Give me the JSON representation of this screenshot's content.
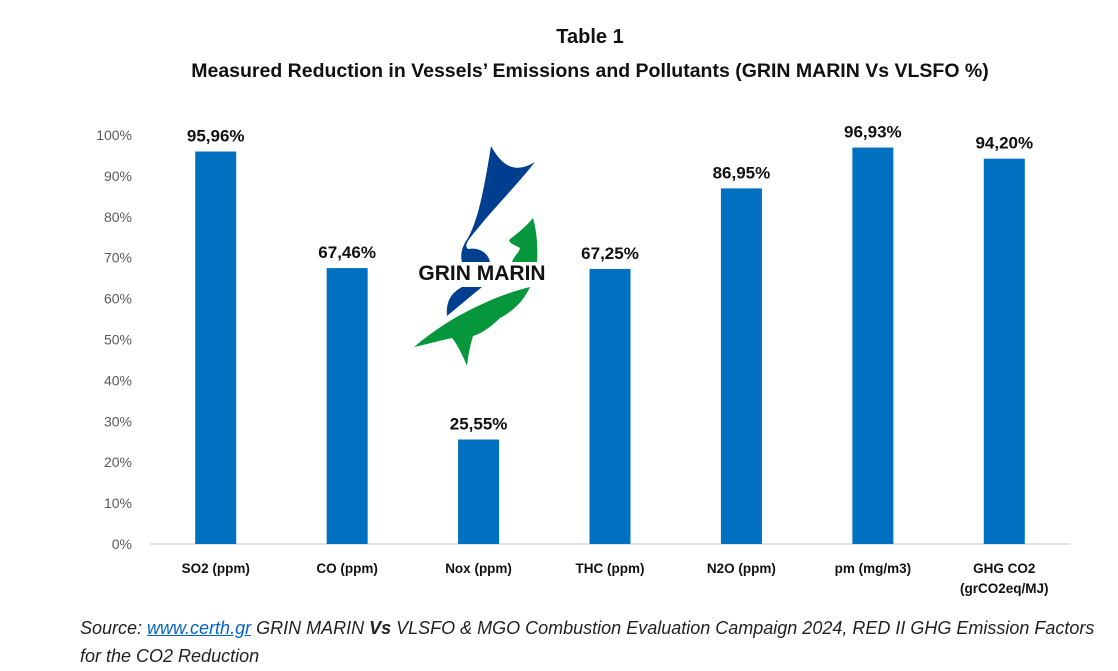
{
  "chart_data": {
    "type": "bar",
    "title": "Table 1",
    "subtitle": "Measured Reduction in Vessels’ Emissions and Pollutants (GRIN MARIN Vs VLSFO %)",
    "xlabel": "",
    "ylabel": "",
    "ylim": [
      0,
      100
    ],
    "yticks": [
      "0%",
      "10%",
      "20%",
      "30%",
      "40%",
      "50%",
      "60%",
      "70%",
      "80%",
      "90%",
      "100%"
    ],
    "categories": [
      [
        "SO2 (ppm)"
      ],
      [
        "CO (ppm)"
      ],
      [
        "Nox (ppm)"
      ],
      [
        "THC (ppm)"
      ],
      [
        "N2O (ppm)"
      ],
      [
        "pm (mg/m3)"
      ],
      [
        "GHG CO2",
        "(grCO2eq/MJ)"
      ]
    ],
    "values": [
      95.96,
      67.46,
      25.55,
      67.25,
      86.95,
      96.93,
      94.2
    ],
    "data_labels": [
      "95,96%",
      "67,46%",
      "25,55%",
      "67,25%",
      "86,95%",
      "96,93%",
      "94,20%"
    ],
    "grid": false,
    "legend": "none",
    "bar_color": "#0070c0"
  },
  "logo": {
    "text": "GRIN MARIN",
    "blue": "#003f8f",
    "green": "#06963c"
  },
  "source": {
    "prefix": "Source: ",
    "link": "www.certh.gr",
    "part1": " GRIN MARIN ",
    "bold": "Vs",
    "part2": " VLSFO & MGO Combustion Evaluation Campaign 2024, RED II GHG Emission Factors for the CO2 Reduction"
  }
}
